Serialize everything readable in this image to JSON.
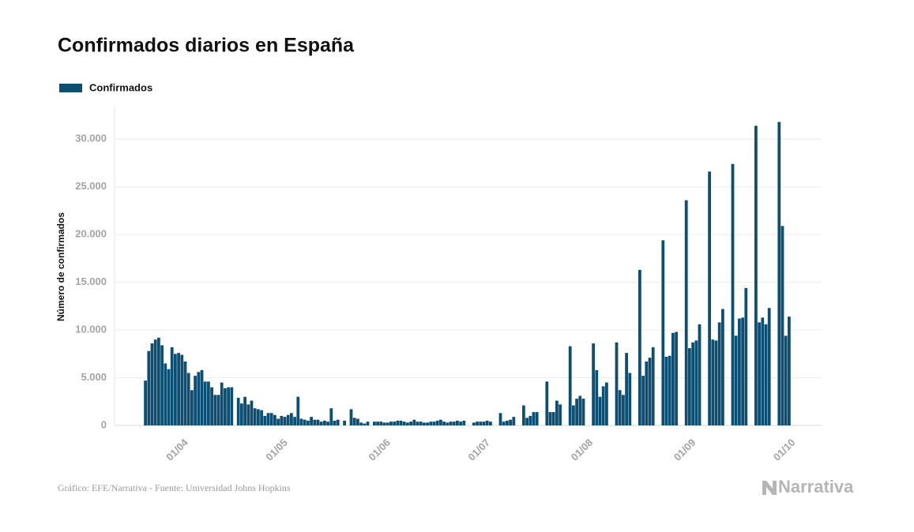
{
  "chart_data": {
    "type": "bar",
    "title": "Confirmados diarios en España",
    "y_label": "Número de confirmados",
    "source": "Gráfico: EFE/Narrativa - Fuente: Universidad Johns Hopkins",
    "brand": "Narrativa",
    "categories": [
      null,
      null,
      null,
      null,
      null,
      null,
      null,
      null,
      null,
      null,
      null,
      "01/04",
      null,
      null,
      null,
      null,
      null,
      null,
      null,
      null,
      null,
      null,
      null,
      null,
      null,
      null,
      null,
      null,
      null,
      null,
      null,
      null,
      null,
      null,
      null,
      null,
      null,
      null,
      null,
      null,
      null,
      "01/05",
      null,
      null,
      null,
      null,
      null,
      null,
      null,
      null,
      null,
      null,
      null,
      null,
      null,
      null,
      null,
      null,
      null,
      null,
      null,
      null,
      null,
      null,
      null,
      null,
      null,
      null,
      null,
      null,
      null,
      null,
      "01/06",
      null,
      null,
      null,
      null,
      null,
      null,
      null,
      null,
      null,
      null,
      null,
      null,
      null,
      null,
      null,
      null,
      null,
      null,
      null,
      null,
      null,
      null,
      null,
      null,
      null,
      null,
      null,
      null,
      null,
      "01/07",
      null,
      null,
      null,
      null,
      null,
      null,
      null,
      null,
      null,
      null,
      null,
      null,
      null,
      null,
      null,
      null,
      null,
      null,
      null,
      null,
      null,
      null,
      null,
      null,
      null,
      null,
      null,
      null,
      null,
      null,
      "01/08",
      null,
      null,
      null,
      null,
      null,
      null,
      null,
      null,
      null,
      null,
      null,
      null,
      null,
      null,
      null,
      null,
      null,
      null,
      null,
      null,
      null,
      null,
      null,
      null,
      null,
      null,
      null,
      null,
      null,
      null,
      "01/09",
      null,
      null,
      null,
      null,
      null,
      null,
      null,
      null,
      null,
      null,
      null,
      null,
      null,
      null,
      null,
      null,
      null,
      null,
      null,
      null,
      null,
      null,
      null,
      null,
      null,
      null,
      null,
      null,
      null,
      "01/10"
    ],
    "series": [
      {
        "name": "Confirmados",
        "color": "#0c4f73",
        "values": [
          4700,
          7800,
          8600,
          9000,
          9200,
          8400,
          6500,
          5900,
          8200,
          7500,
          7600,
          7400,
          6700,
          5500,
          3700,
          5200,
          5600,
          5800,
          4600,
          4600,
          4000,
          3200,
          3200,
          4500,
          3900,
          4000,
          4000,
          0,
          2900,
          2300,
          3000,
          2200,
          2600,
          1800,
          1700,
          1600,
          1000,
          1300,
          1300,
          1100,
          700,
          1000,
          900,
          1100,
          1300,
          900,
          3000,
          700,
          600,
          500,
          900,
          600,
          600,
          400,
          500,
          400,
          1800,
          500,
          600,
          0,
          500,
          0,
          1700,
          800,
          700,
          300,
          200,
          400,
          0,
          400,
          400,
          400,
          300,
          300,
          400,
          400,
          500,
          500,
          400,
          300,
          400,
          600,
          400,
          400,
          300,
          300,
          400,
          400,
          500,
          600,
          400,
          300,
          400,
          400,
          500,
          400,
          500,
          0,
          0,
          300,
          400,
          400,
          400,
          500,
          400,
          0,
          0,
          1300,
          400,
          500,
          600,
          900,
          0,
          0,
          2100,
          800,
          1000,
          1400,
          1400,
          0,
          0,
          4600,
          1400,
          1400,
          2600,
          2200,
          0,
          0,
          8300,
          2100,
          2800,
          3100,
          2800,
          0,
          0,
          8600,
          5800,
          3000,
          4100,
          4500,
          0,
          0,
          8700,
          3700,
          3200,
          7600,
          5500,
          0,
          0,
          16300,
          5200,
          6700,
          7100,
          8200,
          0,
          0,
          19400,
          7200,
          7300,
          9700,
          9800,
          0,
          0,
          23600,
          8100,
          8700,
          8900,
          10600,
          0,
          0,
          26600,
          9000,
          8900,
          10800,
          12200,
          0,
          0,
          27400,
          9400,
          11200,
          11300,
          14400,
          0,
          0,
          31400,
          10800,
          11300,
          10600,
          12300,
          0,
          0,
          31800,
          20900,
          9400,
          11400
        ]
      }
    ],
    "ylim": [
      0,
      33000
    ],
    "yticks": [
      0,
      {
        "value": 5000,
        "label": "5.000"
      },
      {
        "value": 10000,
        "label": "10.000"
      },
      {
        "value": 15000,
        "label": "15.000"
      },
      {
        "value": 20000,
        "label": "20.000"
      },
      {
        "value": 25000,
        "label": "25.000"
      },
      {
        "value": 30000,
        "label": "30.000"
      }
    ],
    "grid": true
  }
}
